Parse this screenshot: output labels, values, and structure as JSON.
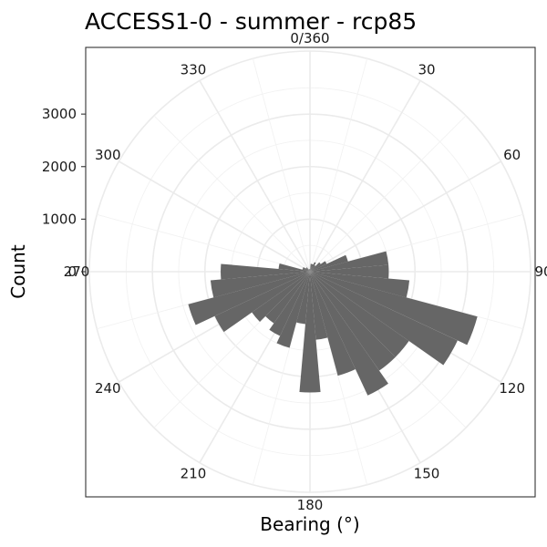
{
  "chart_data": {
    "type": "polar-bar",
    "title": "ACCESS1-0 - summer - rcp85",
    "xlabel": "Bearing (°)",
    "ylabel": "Count",
    "bar_color": "#666666",
    "y_ticks": [
      0,
      1000,
      2000,
      3000
    ],
    "y_tick_labels": [
      "0",
      "1000",
      "2000",
      "3000"
    ],
    "radius_max": 4200,
    "bearing_labels": [
      "0/360",
      "30",
      "60",
      "90",
      "120",
      "150",
      "180",
      "210",
      "240",
      "270",
      "300",
      "330"
    ],
    "bin_width_deg": 10,
    "bins": [
      {
        "bearing": 0,
        "count": 50
      },
      {
        "bearing": 10,
        "count": 150
      },
      {
        "bearing": 20,
        "count": 150
      },
      {
        "bearing": 30,
        "count": 200
      },
      {
        "bearing": 40,
        "count": 150
      },
      {
        "bearing": 50,
        "count": 250
      },
      {
        "bearing": 60,
        "count": 350
      },
      {
        "bearing": 70,
        "count": 750
      },
      {
        "bearing": 80,
        "count": 1500
      },
      {
        "bearing": 90,
        "count": 1500
      },
      {
        "bearing": 100,
        "count": 1900
      },
      {
        "bearing": 110,
        "count": 3300
      },
      {
        "bearing": 120,
        "count": 3100
      },
      {
        "bearing": 130,
        "count": 2300
      },
      {
        "bearing": 140,
        "count": 2300
      },
      {
        "bearing": 150,
        "count": 2600
      },
      {
        "bearing": 160,
        "count": 2050
      },
      {
        "bearing": 170,
        "count": 1300
      },
      {
        "bearing": 180,
        "count": 2300
      },
      {
        "bearing": 190,
        "count": 1000
      },
      {
        "bearing": 200,
        "count": 1500
      },
      {
        "bearing": 210,
        "count": 1350
      },
      {
        "bearing": 220,
        "count": 1200
      },
      {
        "bearing": 230,
        "count": 1350
      },
      {
        "bearing": 240,
        "count": 2000
      },
      {
        "bearing": 250,
        "count": 2400
      },
      {
        "bearing": 260,
        "count": 1900
      },
      {
        "bearing": 270,
        "count": 1700
      },
      {
        "bearing": 280,
        "count": 600
      },
      {
        "bearing": 290,
        "count": 150
      },
      {
        "bearing": 300,
        "count": 150
      },
      {
        "bearing": 310,
        "count": 100
      },
      {
        "bearing": 320,
        "count": 100
      },
      {
        "bearing": 330,
        "count": 50
      },
      {
        "bearing": 340,
        "count": 50
      },
      {
        "bearing": 350,
        "count": 50
      }
    ]
  }
}
